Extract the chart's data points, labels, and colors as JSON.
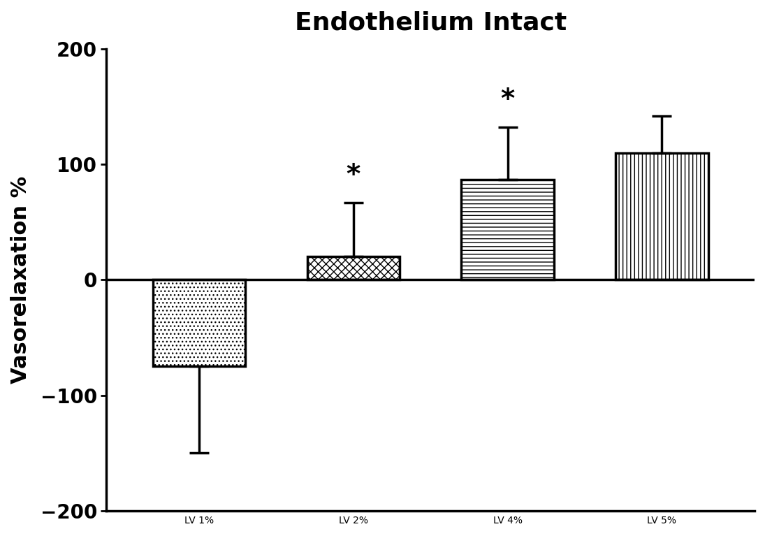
{
  "title": "Endothelium Intact",
  "ylabel": "Vasorelaxation %",
  "categories": [
    "LV 1%",
    "LV 2%",
    "LV 4%",
    "LV 5%"
  ],
  "values": [
    -75,
    20,
    87,
    110
  ],
  "errors": [
    75,
    47,
    45,
    32
  ],
  "ylim": [
    -200,
    200
  ],
  "yticks": [
    -200,
    -100,
    0,
    100,
    200
  ],
  "bar_width": 0.6,
  "hatch_patterns": [
    "...",
    "xxx",
    "---",
    "|||"
  ],
  "significant": [
    false,
    true,
    true,
    false
  ],
  "background_color": "#ffffff",
  "bar_edge_color": "#000000",
  "bar_face_color": "#ffffff",
  "title_fontsize": 26,
  "label_fontsize": 22,
  "tick_fontsize": 20,
  "star_fontsize": 28,
  "capsize": 10,
  "elinewidth": 2.5,
  "capthick": 2.5,
  "bar_linewidth": 2.5
}
